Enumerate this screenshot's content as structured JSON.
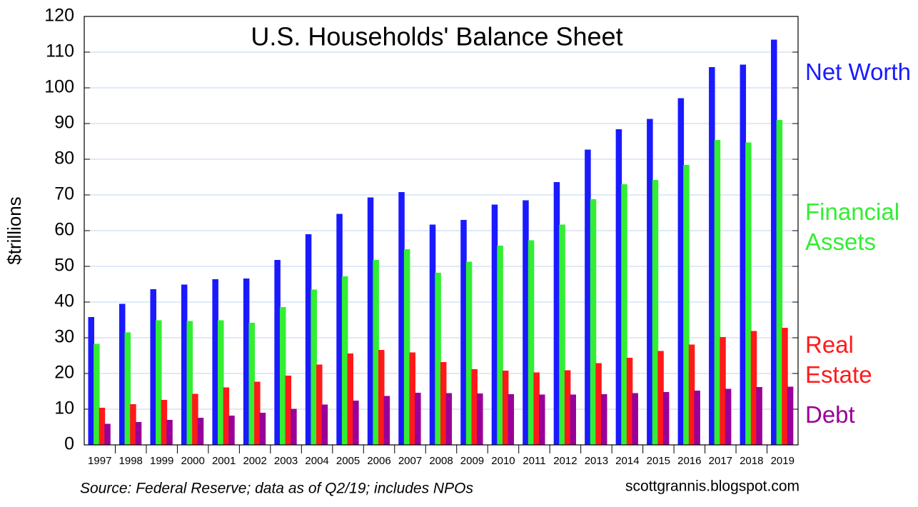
{
  "chart_data": {
    "type": "bar",
    "title": "U.S. Households' Balance Sheet",
    "y_label": "$trillions",
    "source": "Source: Federal Reserve; data as of Q2/19; includes NPOs",
    "credit": "scottgrannis.blogspot.com",
    "categories": [
      "1997",
      "1998",
      "1999",
      "2000",
      "2001",
      "2002",
      "2003",
      "2004",
      "2005",
      "2006",
      "2007",
      "2008",
      "2009",
      "2010",
      "2011",
      "2012",
      "2013",
      "2014",
      "2015",
      "2016",
      "2017",
      "2018",
      "2019"
    ],
    "series": [
      {
        "name": "Net Worth",
        "color": "#1a1aff",
        "values": [
          35.8,
          39.5,
          43.6,
          44.9,
          46.4,
          46.6,
          51.8,
          59,
          64.7,
          69.3,
          70.8,
          61.7,
          63,
          67.3,
          68.5,
          73.6,
          82.7,
          88.4,
          91.3,
          97.1,
          105.8,
          106.5,
          113.5
        ]
      },
      {
        "name": "Financial Assets",
        "color": "#33ee33",
        "values": [
          28.3,
          31.5,
          34.9,
          34.7,
          34.9,
          34.2,
          38.6,
          43.5,
          47.2,
          51.8,
          54.8,
          48.2,
          51.3,
          55.8,
          57.3,
          61.7,
          68.8,
          73,
          74.2,
          78.4,
          85.4,
          84.7,
          91
        ]
      },
      {
        "name": "Real Estate",
        "color": "#ff1a1a",
        "values": [
          10.4,
          11.4,
          12.6,
          14.3,
          16.1,
          17.7,
          19.4,
          22.5,
          25.6,
          26.6,
          25.9,
          23.2,
          21.2,
          20.8,
          20.3,
          20.9,
          22.9,
          24.4,
          26.3,
          28.1,
          30.2,
          31.9,
          32.8
        ]
      },
      {
        "name": "Debt",
        "color": "#990099",
        "values": [
          5.9,
          6.4,
          7,
          7.6,
          8.2,
          9,
          10.1,
          11.3,
          12.4,
          13.7,
          14.6,
          14.5,
          14.4,
          14.2,
          14.1,
          14.1,
          14.2,
          14.5,
          14.8,
          15.2,
          15.7,
          16.2,
          16.3
        ]
      }
    ],
    "ylim": [
      0,
      120
    ],
    "yticks": [
      0,
      10,
      20,
      30,
      40,
      50,
      60,
      70,
      80,
      90,
      100,
      110,
      120
    ],
    "grid": true
  }
}
